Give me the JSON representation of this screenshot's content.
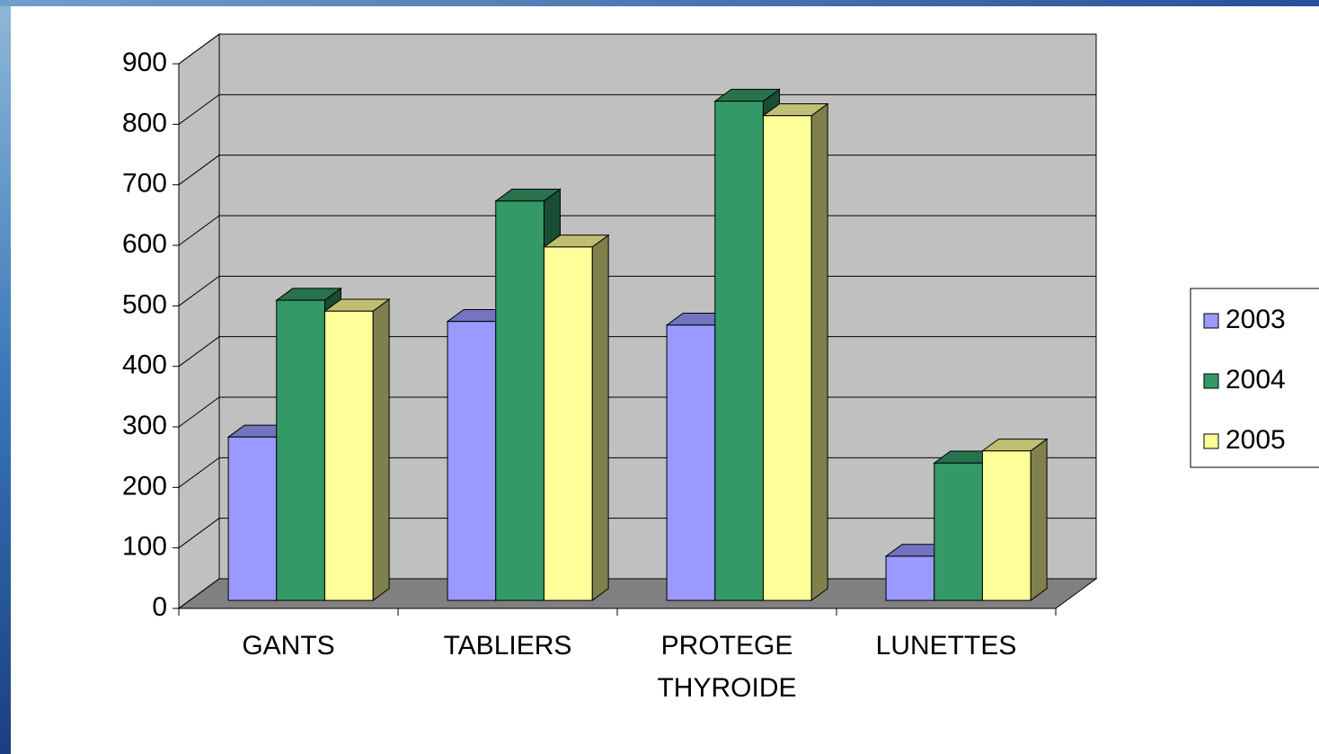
{
  "chart_data": {
    "type": "bar3d",
    "categories": [
      "GANTS",
      "TABLIERS",
      "PROTEGE THYROIDE",
      "LUNETTES"
    ],
    "series": [
      {
        "name": "2003",
        "color": "#9999ff",
        "values": [
          270,
          461,
          455,
          73
        ]
      },
      {
        "name": "2004",
        "color": "#339966",
        "values": [
          496,
          660,
          825,
          227
        ]
      },
      {
        "name": "2005",
        "color": "#ffff99",
        "values": [
          478,
          584,
          801,
          247
        ]
      }
    ],
    "ylim": [
      0,
      900
    ],
    "yticks": [
      0,
      100,
      200,
      300,
      400,
      500,
      600,
      700,
      800,
      900
    ],
    "grid": true,
    "legend": "right"
  }
}
